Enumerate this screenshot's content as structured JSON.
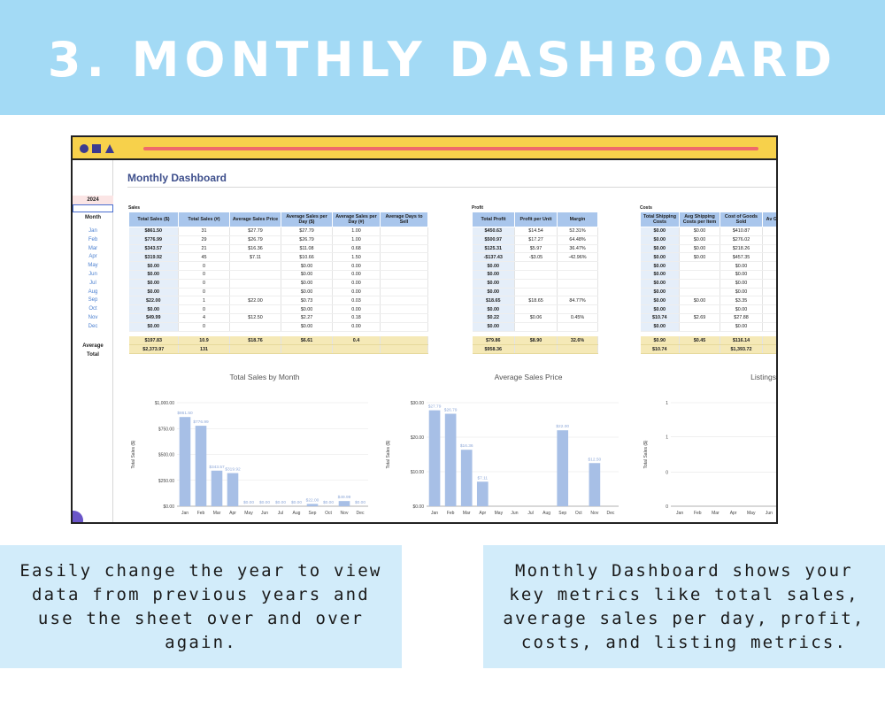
{
  "banner": {
    "title": "3. MONTHLY DASHBOARD"
  },
  "window": {
    "decor_icons": [
      "circle-icon",
      "square-icon",
      "triangle-icon"
    ],
    "accent": "#f7d14b"
  },
  "sheet": {
    "title": "Monthly Dashboard",
    "year": "2024",
    "month_header": "Month",
    "months": [
      "Jan",
      "Feb",
      "Mar",
      "Apr",
      "May",
      "Jun",
      "Jul",
      "Aug",
      "Sep",
      "Oct",
      "Nov",
      "Dec"
    ],
    "average_label": "Average",
    "total_label": "Total"
  },
  "sales": {
    "section_label": "Sales",
    "headers": [
      "Total Sales ($)",
      "Total Sales (#)",
      "Average Sales Price",
      "Average Sales per Day ($)",
      "Average Sales per Day (#)",
      "Average Days to Sell"
    ],
    "rows": [
      [
        "$861.50",
        "31",
        "$27.79",
        "$27.79",
        "1.00",
        ""
      ],
      [
        "$776.99",
        "29",
        "$26.79",
        "$26.79",
        "1.00",
        ""
      ],
      [
        "$343.57",
        "21",
        "$16.36",
        "$11.08",
        "0.68",
        ""
      ],
      [
        "$319.92",
        "45",
        "$7.11",
        "$10.66",
        "1.50",
        ""
      ],
      [
        "$0.00",
        "0",
        "",
        "$0.00",
        "0.00",
        ""
      ],
      [
        "$0.00",
        "0",
        "",
        "$0.00",
        "0.00",
        ""
      ],
      [
        "$0.00",
        "0",
        "",
        "$0.00",
        "0.00",
        ""
      ],
      [
        "$0.00",
        "0",
        "",
        "$0.00",
        "0.00",
        ""
      ],
      [
        "$22.00",
        "1",
        "$22.00",
        "$0.73",
        "0.03",
        ""
      ],
      [
        "$0.00",
        "0",
        "",
        "$0.00",
        "0.00",
        ""
      ],
      [
        "$49.99",
        "4",
        "$12.50",
        "$2.27",
        "0.18",
        ""
      ],
      [
        "$0.00",
        "0",
        "",
        "$0.00",
        "0.00",
        ""
      ]
    ],
    "average": [
      "$197.83",
      "10.9",
      "$18.76",
      "$6.61",
      "0.4",
      ""
    ],
    "total": [
      "$2,373.97",
      "131",
      "",
      "",
      "",
      ""
    ]
  },
  "profit": {
    "section_label": "Profit",
    "headers": [
      "Total Profit",
      "Profit per Unit",
      "Margin"
    ],
    "rows": [
      [
        "$450.63",
        "$14.54",
        "52.31%"
      ],
      [
        "$500.97",
        "$17.27",
        "64.48%"
      ],
      [
        "$125.31",
        "$5.97",
        "36.47%"
      ],
      [
        "-$137.43",
        "-$3.05",
        "-42.96%"
      ],
      [
        "$0.00",
        "",
        ""
      ],
      [
        "$0.00",
        "",
        ""
      ],
      [
        "$0.00",
        "",
        ""
      ],
      [
        "$0.00",
        "",
        ""
      ],
      [
        "$18.65",
        "$18.65",
        "84.77%"
      ],
      [
        "$0.00",
        "",
        ""
      ],
      [
        "$0.22",
        "$0.06",
        "0.45%"
      ],
      [
        "$0.00",
        "",
        ""
      ]
    ],
    "average": [
      "$79.86",
      "$8.90",
      "32.6%"
    ],
    "total": [
      "$958.36",
      "",
      ""
    ]
  },
  "costs": {
    "section_label": "Costs",
    "headers": [
      "Total Shipping Costs",
      "Avg Shipping Costs per Item",
      "Cost of Goods Sold",
      "Av Go"
    ],
    "rows": [
      [
        "$0.00",
        "$0.00",
        "$410.87",
        ""
      ],
      [
        "$0.00",
        "$0.00",
        "$276.02",
        ""
      ],
      [
        "$0.00",
        "$0.00",
        "$218.26",
        ""
      ],
      [
        "$0.00",
        "$0.00",
        "$457.35",
        ""
      ],
      [
        "$0.00",
        "",
        "$0.00",
        ""
      ],
      [
        "$0.00",
        "",
        "$0.00",
        ""
      ],
      [
        "$0.00",
        "",
        "$0.00",
        ""
      ],
      [
        "$0.00",
        "",
        "$0.00",
        ""
      ],
      [
        "$0.00",
        "$0.00",
        "$3.35",
        ""
      ],
      [
        "$0.00",
        "",
        "$0.00",
        ""
      ],
      [
        "$10.74",
        "$2.69",
        "$27.88",
        ""
      ],
      [
        "$0.00",
        "",
        "$0.00",
        ""
      ]
    ],
    "average": [
      "$0.90",
      "$0.45",
      "$116.14",
      ""
    ],
    "total": [
      "$10.74",
      "",
      "$1,393.72",
      ""
    ]
  },
  "chart_data": [
    {
      "type": "bar",
      "title": "Total Sales by Month",
      "ylabel": "Total Sales ($)",
      "xlabel": "",
      "categories": [
        "Jan",
        "Feb",
        "Mar",
        "Apr",
        "May",
        "Jun",
        "Jul",
        "Aug",
        "Sep",
        "Oct",
        "Nov",
        "Dec"
      ],
      "values": [
        861.5,
        776.99,
        343.57,
        319.92,
        0,
        0,
        0,
        0,
        22.0,
        0,
        49.99,
        0
      ],
      "data_labels": [
        "$861.50",
        "$776.99",
        "$343.57",
        "$319.92",
        "$0.00",
        "$0.00",
        "$0.00",
        "$0.00",
        "$22.00",
        "$0.00",
        "$49.99",
        "$0.00"
      ],
      "ylim": [
        0,
        1000
      ],
      "yticks": [
        0,
        250,
        500,
        750,
        1000
      ],
      "ytick_labels": [
        "$0.00",
        "$250.00",
        "$500.00",
        "$750.00",
        "$1,000.00"
      ],
      "color": "#a7bfe6"
    },
    {
      "type": "bar",
      "title": "Average Sales Price",
      "ylabel": "Total Sales ($)",
      "xlabel": "",
      "categories": [
        "Jan",
        "Feb",
        "Mar",
        "Apr",
        "May",
        "Jun",
        "Jul",
        "Aug",
        "Sep",
        "Oct",
        "Nov",
        "Dec"
      ],
      "values": [
        27.79,
        26.79,
        16.36,
        7.11,
        0,
        0,
        0,
        0,
        22.0,
        0,
        12.5,
        0
      ],
      "data_labels": [
        "$27.79",
        "$26.79",
        "$16.36",
        "$7.11",
        "",
        "",
        "",
        "",
        "$22.00",
        "",
        "$12.50",
        ""
      ],
      "ylim": [
        0,
        30
      ],
      "yticks": [
        0,
        10,
        20,
        30
      ],
      "ytick_labels": [
        "$0.00",
        "$10.00",
        "$20.00",
        "$30.00"
      ],
      "color": "#a7bfe6"
    },
    {
      "type": "bar",
      "title": "Listings",
      "ylabel": "Total Sales ($)",
      "xlabel": "",
      "categories": [
        "Jan",
        "Feb",
        "Mar",
        "Apr",
        "May",
        "Jun"
      ],
      "values": [
        0,
        0,
        0,
        0,
        0,
        0
      ],
      "ylim": [
        0,
        1
      ],
      "yticks": [
        0,
        0.33,
        0.67,
        1
      ],
      "ytick_labels": [
        "0",
        "0",
        "1",
        "1"
      ],
      "color": "#a7bfe6"
    }
  ],
  "captions": {
    "left": "Easily change the year to view data from previous years and use the sheet over and over again.",
    "right": "Monthly Dashboard shows your key metrics like total sales, average sales per day, profit, costs, and listing metrics."
  }
}
